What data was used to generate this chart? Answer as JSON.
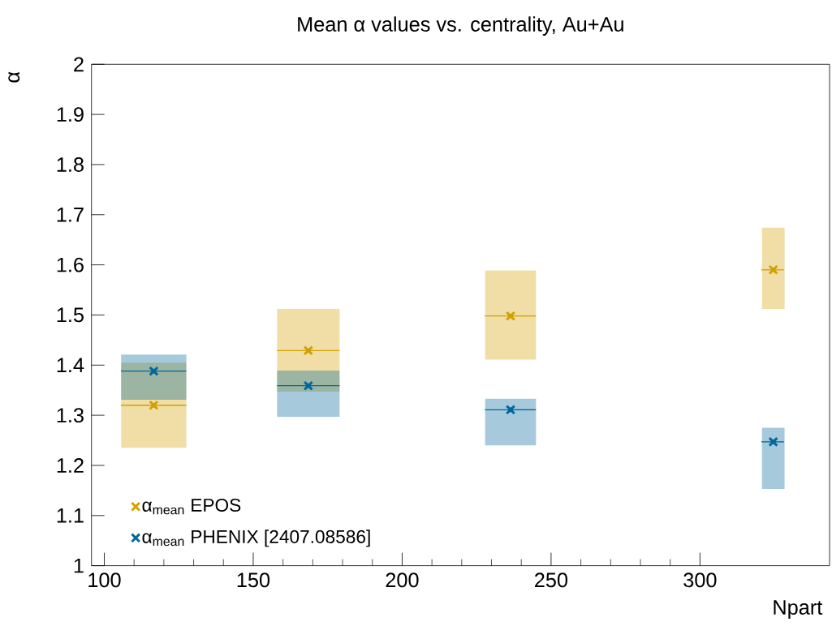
{
  "chart_data": {
    "type": "scatter",
    "title": "Mean α values vs. centrality, Au+Au",
    "xlabel": "Npart",
    "ylabel": "α",
    "x": [
      116.6,
      168.5,
      236.4,
      324.6
    ],
    "series": [
      {
        "name": "α$_{mean}$ EPOS",
        "color": "#d4a000",
        "values": [
          1.32,
          1.429,
          1.498,
          1.59
        ],
        "errors": [
          [
            1.235,
            1.405
          ],
          [
            1.347,
            1.512
          ],
          [
            1.411,
            1.589
          ],
          [
            1.512,
            1.674
          ]
        ],
        "xerrors": [
          [
            105.6,
            127.5
          ],
          [
            158.0,
            179.0
          ],
          [
            227.8,
            244.9
          ],
          [
            320.6,
            328.2
          ]
        ]
      },
      {
        "name": "α$_{mean}$ PHENIX [2407.08586]",
        "color": "#00679c",
        "values": [
          1.388,
          1.359,
          1.311,
          1.247
        ],
        "errors": [
          [
            1.331,
            1.421
          ],
          [
            1.297,
            1.389
          ],
          [
            1.24,
            1.333
          ],
          [
            1.153,
            1.275
          ]
        ],
        "xerrors": [
          [
            105.6,
            127.5
          ],
          [
            158.0,
            179.0
          ],
          [
            227.8,
            244.9
          ],
          [
            320.6,
            328.2
          ]
        ]
      }
    ],
    "xlim": [
      95.7,
      343.5
    ],
    "ylim": [
      1,
      2
    ],
    "xticks": [
      100,
      150,
      200,
      250,
      300
    ],
    "yticks": [
      1,
      1.1,
      1.2,
      1.3,
      1.4,
      1.5,
      1.6,
      1.7,
      1.8,
      1.9,
      2
    ],
    "marker": "cross",
    "legend": "bottom left"
  }
}
